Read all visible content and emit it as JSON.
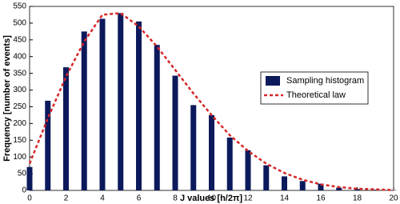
{
  "chart_data": {
    "type": "bar",
    "x": [
      0,
      1,
      2,
      3,
      4,
      5,
      6,
      7,
      8,
      9,
      10,
      11,
      12,
      13,
      14,
      15,
      16,
      17,
      18,
      19,
      20
    ],
    "series": [
      {
        "name": "Sampling histogram",
        "type": "bar",
        "color": "#0c1a5c",
        "values": [
          70,
          268,
          368,
          475,
          513,
          530,
          505,
          435,
          343,
          255,
          225,
          158,
          120,
          75,
          42,
          28,
          20,
          8,
          4,
          2,
          1
        ]
      },
      {
        "name": "Theoretical law",
        "type": "line",
        "color": "#d62728",
        "dashed": true,
        "values": [
          80,
          215,
          340,
          445,
          525,
          530,
          490,
          430,
          360,
          290,
          225,
          165,
          118,
          80,
          52,
          32,
          18,
          10,
          5,
          3,
          1
        ]
      }
    ],
    "xlabel": "J values [h/2π]",
    "ylabel": "Frequency [number of events]",
    "xlim": [
      0,
      20
    ],
    "xticks": [
      0,
      2,
      4,
      6,
      8,
      10,
      12,
      14,
      16,
      18,
      20
    ],
    "ylim": [
      0,
      550
    ],
    "yticks": [
      0,
      50,
      100,
      150,
      200,
      250,
      300,
      350,
      400,
      450,
      500,
      550
    ],
    "legend": "right",
    "grid": false
  }
}
